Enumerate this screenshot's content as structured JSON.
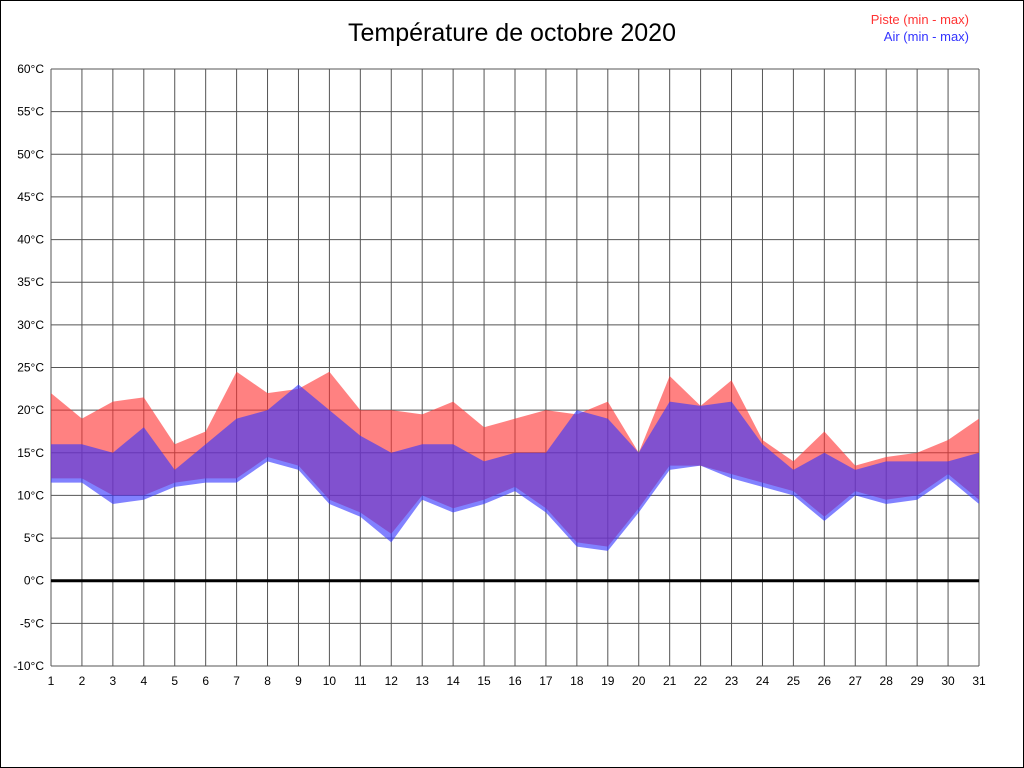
{
  "title": "Température de octobre 2020",
  "legend": {
    "piste_label": "Piste (min - max)",
    "air_label": "Air (min - max)"
  },
  "colors": {
    "piste": "#ff3333",
    "air": "#3333ff",
    "band_opacity": 0.62,
    "grid": "#555555",
    "zero_line": "#000000",
    "text": "#000000"
  },
  "chart_data": {
    "type": "area",
    "title": "Température de octobre 2020",
    "x_label": "day of month",
    "y_label": "temperature",
    "x": [
      1,
      2,
      3,
      4,
      5,
      6,
      7,
      8,
      9,
      10,
      11,
      12,
      13,
      14,
      15,
      16,
      17,
      18,
      19,
      20,
      21,
      22,
      23,
      24,
      25,
      26,
      27,
      28,
      29,
      30,
      31
    ],
    "ylim": [
      -10,
      60
    ],
    "ytick_step": 5,
    "ytick_suffix": "°C",
    "grid": true,
    "legend_position": "top-right",
    "zero_line_value": 0,
    "series": [
      {
        "name": "Piste (min - max)",
        "color": "#ff3333",
        "min": [
          12,
          12,
          10,
          10,
          11.5,
          12,
          12,
          14.5,
          13.5,
          9.5,
          8,
          5.5,
          10,
          8.5,
          9.5,
          11,
          8.5,
          4.5,
          4,
          8.5,
          13.5,
          13.5,
          12.5,
          11.5,
          10.5,
          7.5,
          10.5,
          9.5,
          10,
          12.5,
          9.5
        ],
        "max": [
          22,
          19,
          21,
          21.5,
          16,
          17.5,
          24.5,
          22,
          22.5,
          24.5,
          20,
          20,
          19.5,
          21,
          18,
          19,
          20,
          19.5,
          21,
          15,
          24,
          20.5,
          23.5,
          16.5,
          14,
          17.5,
          13.5,
          14.5,
          15,
          16.5,
          19
        ]
      },
      {
        "name": "Air (min - max)",
        "color": "#3333ff",
        "min": [
          11.5,
          11.5,
          9,
          9.5,
          11,
          11.5,
          11.5,
          14,
          13,
          9,
          7.5,
          4.5,
          9.5,
          8,
          9,
          10.5,
          8,
          4,
          3.5,
          8,
          13,
          13.5,
          12,
          11,
          10,
          7,
          10,
          9,
          9.5,
          12,
          9
        ],
        "max": [
          16,
          16,
          15,
          18,
          13,
          16,
          19,
          20,
          23,
          20,
          17,
          15,
          16,
          16,
          14,
          15,
          15,
          20,
          19,
          15,
          21,
          20.5,
          21,
          16,
          13,
          15,
          13,
          14,
          14,
          14,
          15
        ]
      }
    ]
  }
}
